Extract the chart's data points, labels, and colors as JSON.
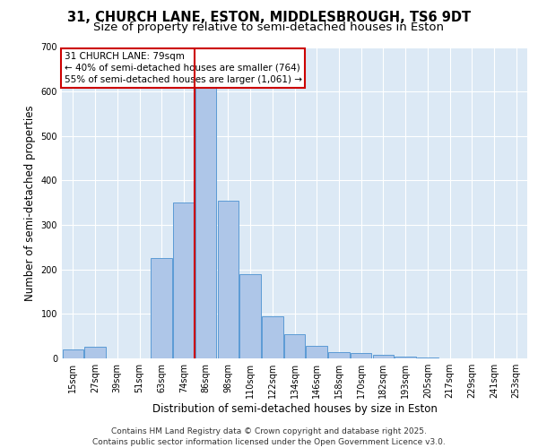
{
  "title_line1": "31, CHURCH LANE, ESTON, MIDDLESBROUGH, TS6 9DT",
  "title_line2": "Size of property relative to semi-detached houses in Eston",
  "xlabel": "Distribution of semi-detached houses by size in Eston",
  "ylabel": "Number of semi-detached properties",
  "footer": "Contains HM Land Registry data © Crown copyright and database right 2025.\nContains public sector information licensed under the Open Government Licence v3.0.",
  "bin_labels": [
    "15sqm",
    "27sqm",
    "39sqm",
    "51sqm",
    "63sqm",
    "74sqm",
    "86sqm",
    "98sqm",
    "110sqm",
    "122sqm",
    "134sqm",
    "146sqm",
    "158sqm",
    "170sqm",
    "182sqm",
    "193sqm",
    "205sqm",
    "217sqm",
    "229sqm",
    "241sqm",
    "253sqm"
  ],
  "bar_values": [
    20,
    27,
    0,
    0,
    225,
    350,
    620,
    355,
    190,
    95,
    55,
    28,
    15,
    12,
    8,
    4,
    2,
    0,
    0,
    0,
    0
  ],
  "bar_color": "#aec6e8",
  "bar_edge_color": "#5b9bd5",
  "vline_x": 5.5,
  "vline_color": "#cc0000",
  "annotation_text": "31 CHURCH LANE: 79sqm\n← 40% of semi-detached houses are smaller (764)\n55% of semi-detached houses are larger (1,061) →",
  "annotation_box_color": "#cc0000",
  "annotation_bg": "#ffffff",
  "ylim": [
    0,
    700
  ],
  "yticks": [
    0,
    100,
    200,
    300,
    400,
    500,
    600,
    700
  ],
  "plot_bg_color": "#dce9f5",
  "grid_color": "#ffffff",
  "title_fontsize": 10.5,
  "subtitle_fontsize": 9.5,
  "axis_label_fontsize": 8.5,
  "tick_fontsize": 7,
  "annotation_fontsize": 7.5,
  "footer_fontsize": 6.5
}
